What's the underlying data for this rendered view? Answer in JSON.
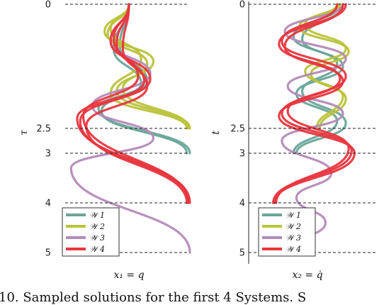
{
  "colors": {
    "W1": "#6aa59a",
    "W2": "#b9c33a",
    "W3": "#b48ab8",
    "W4": "#e8363f"
  },
  "caption": "10. Sampled solutions for the first 4 Systems. S",
  "chart_data": [
    {
      "type": "line",
      "orientation": "time-vertical",
      "xlabel": "x₁ = q",
      "ylabel": "τ",
      "yticks": [
        "0",
        "2.5",
        "3",
        "4",
        "5"
      ],
      "ytick_values": [
        0,
        2.5,
        3,
        4,
        5
      ],
      "ylim": [
        0,
        5
      ],
      "dashed_lines_at": [
        0,
        2.5,
        3,
        4,
        5
      ],
      "legend": {
        "placement": "bottom-left",
        "entries": [
          "𝒲 1",
          "𝒲 2",
          "𝒲 3",
          "𝒲 4"
        ]
      },
      "series": [
        {
          "name": "𝒲 1",
          "end_time": 3.0,
          "samples": [
            {
              "x": [
                0.0,
                -0.25,
                0.2,
                -0.5,
                1.0
              ],
              "t": [
                0.0,
                0.9,
                1.6,
                2.1,
                3.0
              ]
            },
            {
              "x": [
                0.0,
                -0.15,
                0.3,
                -0.45,
                0.95
              ],
              "t": [
                0.0,
                0.85,
                1.55,
                2.15,
                3.0
              ]
            }
          ]
        },
        {
          "name": "𝒲 2",
          "end_time": 2.5,
          "samples": [
            {
              "x": [
                0.0,
                -0.4,
                0.4,
                -0.2,
                1.0
              ],
              "t": [
                0.0,
                0.55,
                1.15,
                1.75,
                2.5
              ]
            },
            {
              "x": [
                0.0,
                -0.35,
                0.3,
                -0.1,
                0.98
              ],
              "t": [
                0.0,
                0.6,
                1.2,
                1.7,
                2.5
              ]
            },
            {
              "x": [
                0.0,
                -0.3,
                0.2,
                -0.3,
                0.95
              ],
              "t": [
                0.0,
                0.5,
                1.1,
                1.8,
                2.5
              ]
            }
          ]
        },
        {
          "name": "𝒲 3",
          "end_time": 5.0,
          "samples": [
            {
              "x": [
                0.0,
                -0.3,
                0.35,
                -0.6,
                0.4,
                -0.95,
                1.0
              ],
              "t": [
                0.0,
                0.75,
                1.4,
                2.05,
                2.7,
                3.3,
                5.0
              ]
            }
          ]
        },
        {
          "name": "𝒲 4",
          "end_time": 4.0,
          "samples": [
            {
              "x": [
                0.0,
                -0.2,
                0.25,
                -0.85,
                1.0
              ],
              "t": [
                0.0,
                0.8,
                1.55,
                2.3,
                4.0
              ]
            },
            {
              "x": [
                0.0,
                -0.3,
                0.35,
                -0.8,
                0.98
              ],
              "t": [
                0.0,
                0.75,
                1.5,
                2.35,
                4.0
              ]
            },
            {
              "x": [
                0.0,
                -0.1,
                0.3,
                -0.7,
                0.95
              ],
              "t": [
                0.0,
                0.9,
                1.65,
                2.45,
                4.0
              ]
            },
            {
              "x": [
                0.0,
                -0.25,
                0.15,
                -0.75,
                0.97
              ],
              "t": [
                0.0,
                0.7,
                1.45,
                2.25,
                4.0
              ]
            }
          ]
        }
      ]
    },
    {
      "type": "line",
      "orientation": "time-vertical",
      "xlabel": "x₂ = q̇",
      "ylabel": "t",
      "yticks": [
        "0",
        "2.5",
        "3",
        "4",
        "5"
      ],
      "ytick_values": [
        0,
        2.5,
        3,
        4,
        5
      ],
      "ylim": [
        0,
        5
      ],
      "dashed_lines_at": [
        0,
        2.5,
        3,
        4,
        5
      ],
      "legend": {
        "placement": "bottom-left",
        "entries": [
          "𝒲 1",
          "𝒲 2",
          "𝒲 3",
          "𝒲 4"
        ]
      },
      "series": [
        {
          "name": "𝒲 1",
          "end_time": 3.0,
          "samples": [
            {
              "x": [
                0.5,
                -0.2,
                0.5,
                -0.3,
                0.4,
                -0.35
              ],
              "t": [
                0.0,
                0.7,
                1.25,
                1.8,
                2.35,
                3.0
              ]
            },
            {
              "x": [
                0.45,
                -0.35,
                0.4,
                -0.2,
                0.55,
                -0.3
              ],
              "t": [
                0.0,
                0.65,
                1.2,
                1.75,
                2.4,
                3.0
              ]
            }
          ]
        },
        {
          "name": "𝒲 2",
          "end_time": 2.5,
          "samples": [
            {
              "x": [
                0.45,
                -0.25,
                0.6,
                -0.05,
                0.55,
                0.1
              ],
              "t": [
                0.0,
                0.45,
                0.95,
                1.4,
                1.9,
                2.5
              ]
            },
            {
              "x": [
                0.4,
                -0.15,
                0.55,
                -0.15,
                0.5,
                0.05
              ],
              "t": [
                0.0,
                0.4,
                0.9,
                1.35,
                1.85,
                2.5
              ]
            }
          ]
        },
        {
          "name": "𝒲 3",
          "end_time": 5.0,
          "samples": [
            {
              "x": [
                0.5,
                -0.5,
                0.55,
                -0.45,
                0.5,
                -0.55,
                0.3,
                -0.3,
                0.2,
                -0.55
              ],
              "t": [
                0.0,
                0.55,
                1.1,
                1.65,
                2.2,
                2.75,
                3.4,
                3.9,
                4.4,
                5.0
              ]
            }
          ]
        },
        {
          "name": "𝒲 4",
          "end_time": 4.0,
          "samples": [
            {
              "x": [
                0.55,
                -0.6,
                0.45,
                -0.55,
                0.65,
                -0.7
              ],
              "t": [
                0.0,
                0.8,
                1.5,
                2.2,
                2.95,
                4.0
              ]
            },
            {
              "x": [
                0.4,
                -0.55,
                0.55,
                -0.45,
                0.6,
                -0.65
              ],
              "t": [
                0.0,
                0.75,
                1.45,
                2.15,
                2.9,
                4.0
              ]
            },
            {
              "x": [
                0.5,
                -0.5,
                0.5,
                -0.6,
                0.7,
                -0.68
              ],
              "t": [
                0.0,
                0.85,
                1.55,
                2.25,
                3.0,
                4.0
              ]
            }
          ]
        }
      ]
    }
  ]
}
